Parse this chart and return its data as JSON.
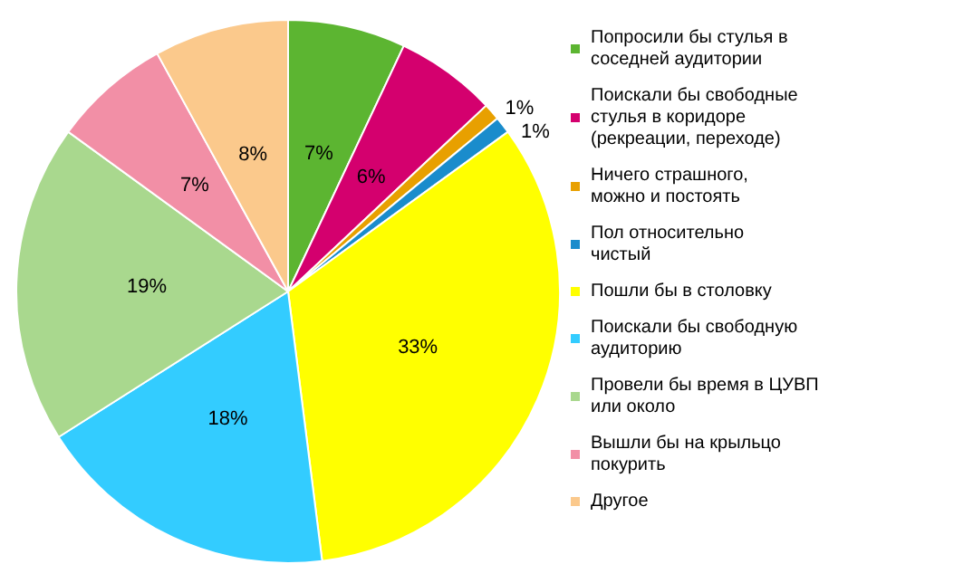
{
  "chart_data": {
    "type": "pie",
    "categories": [
      "Попросили бы стулья в соседней аудитории",
      "Поискали бы свободные стулья в коридоре (рекреации, переходе)",
      "Ничего страшного, можно и постоять",
      "Пол относительно чистый",
      "Пошли бы в столовку",
      "Поискали бы свободную аудиторию",
      "Провели бы время в ЦУВП или около",
      "Вышли бы на крыльцо покурить",
      "Другое"
    ],
    "values": [
      7,
      6,
      1,
      1,
      33,
      18,
      19,
      7,
      8
    ],
    "colors": [
      "#5cb531",
      "#d4006e",
      "#e8a000",
      "#1a8ccc",
      "#ffff00",
      "#33ccff",
      "#a9d88e",
      "#f28fa6",
      "#fbc98c"
    ],
    "value_labels": [
      "7%",
      "6%",
      "1%",
      "1%",
      "33%",
      "18%",
      "19%",
      "7%",
      "8%"
    ],
    "data_labels": true,
    "legend": "right"
  }
}
